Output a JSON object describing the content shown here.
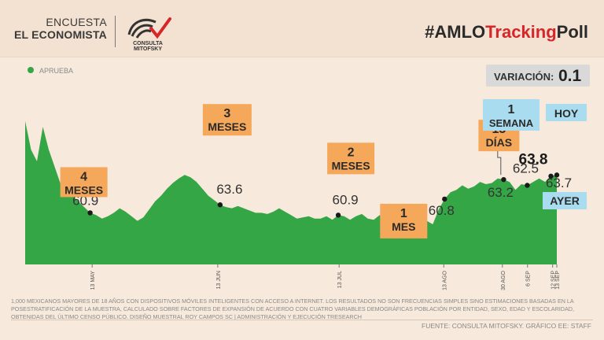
{
  "header": {
    "brand_line1": "ENCUESTA",
    "brand_line2": "EL ECONOMISTA",
    "logo_text": "CONSULTA MITOFSKY",
    "tracking_prefix": "#AMLO",
    "tracking_red": "Tracking",
    "tracking_suffix": "Poll"
  },
  "variacion": {
    "label": "VARIACIÓN:",
    "value": "0.1"
  },
  "chart_data": {
    "type": "area",
    "series": [
      {
        "name": "APRUEBA",
        "color": "#35a646",
        "values": [
          68.5,
          66.0,
          65.0,
          68.0,
          66.0,
          64.5,
          63.0,
          62.5,
          62.0,
          61.5,
          61.0,
          60.5,
          60.3,
          60.0,
          60.2,
          60.5,
          60.9,
          60.6,
          60.2,
          59.8,
          60.1,
          60.8,
          61.5,
          62.0,
          62.6,
          63.1,
          63.5,
          63.8,
          63.6,
          63.2,
          62.6,
          62.0,
          61.6,
          61.2,
          61.0,
          60.9,
          61.1,
          60.9,
          60.7,
          60.5,
          60.5,
          60.4,
          60.6,
          60.9,
          60.6,
          60.3,
          60.0,
          60.1,
          60.2,
          60.0,
          60.0,
          60.2,
          59.9,
          60.3,
          60.2,
          59.9,
          60.2,
          60.4,
          60.0,
          59.9,
          60.3,
          60.0,
          60.3,
          60.0,
          59.8,
          59.8,
          60.2,
          59.7,
          59.8,
          59.5,
          60.8,
          61.7,
          62.3,
          62.5,
          62.9,
          62.6,
          62.8,
          63.2,
          63.0,
          63.1,
          63.5,
          63.4,
          63.2,
          62.5,
          63.0,
          62.9,
          63.2,
          63.5,
          63.2,
          63.7,
          63.8
        ]
      }
    ],
    "x_ticks": [
      "13 MAY",
      "13 JUN",
      "13 JUL",
      "13 AGO",
      "30 AGO",
      "6 SEP",
      "12 SEP",
      "13 SEP"
    ],
    "point_labels": [
      "60.9",
      "63.6",
      "60.9",
      "60.8",
      "63.2",
      "62.5",
      "63.7",
      "63.8"
    ],
    "callouts": [
      "4 MESES",
      "3 MESES",
      "2 MESES",
      "1 MES",
      "15 DÍAS",
      "1 SEMANA",
      "HOY",
      "AYER"
    ],
    "legend": "APRUEBA",
    "ylim": [
      56,
      70
    ]
  },
  "footnote": "1,000 mexicanos mayores de 18 años con dispositivos móviles inteligentes con acceso a internet. Los resultados no son frecuencias simples sino estimaciones basadas en la posestratificación de la muestra, calculado sobre factores de expansión de acuerdo con cuatro variables demográficas población por entidad, sexo, edad y escolaridad, obtenidas del último censo público. Diseño muestral Roy Campos SC | Administración y ejecución TResearch",
  "source": "FUENTE: CONSULTA MITOFSKY. GRÁFICO EE: STAFF"
}
